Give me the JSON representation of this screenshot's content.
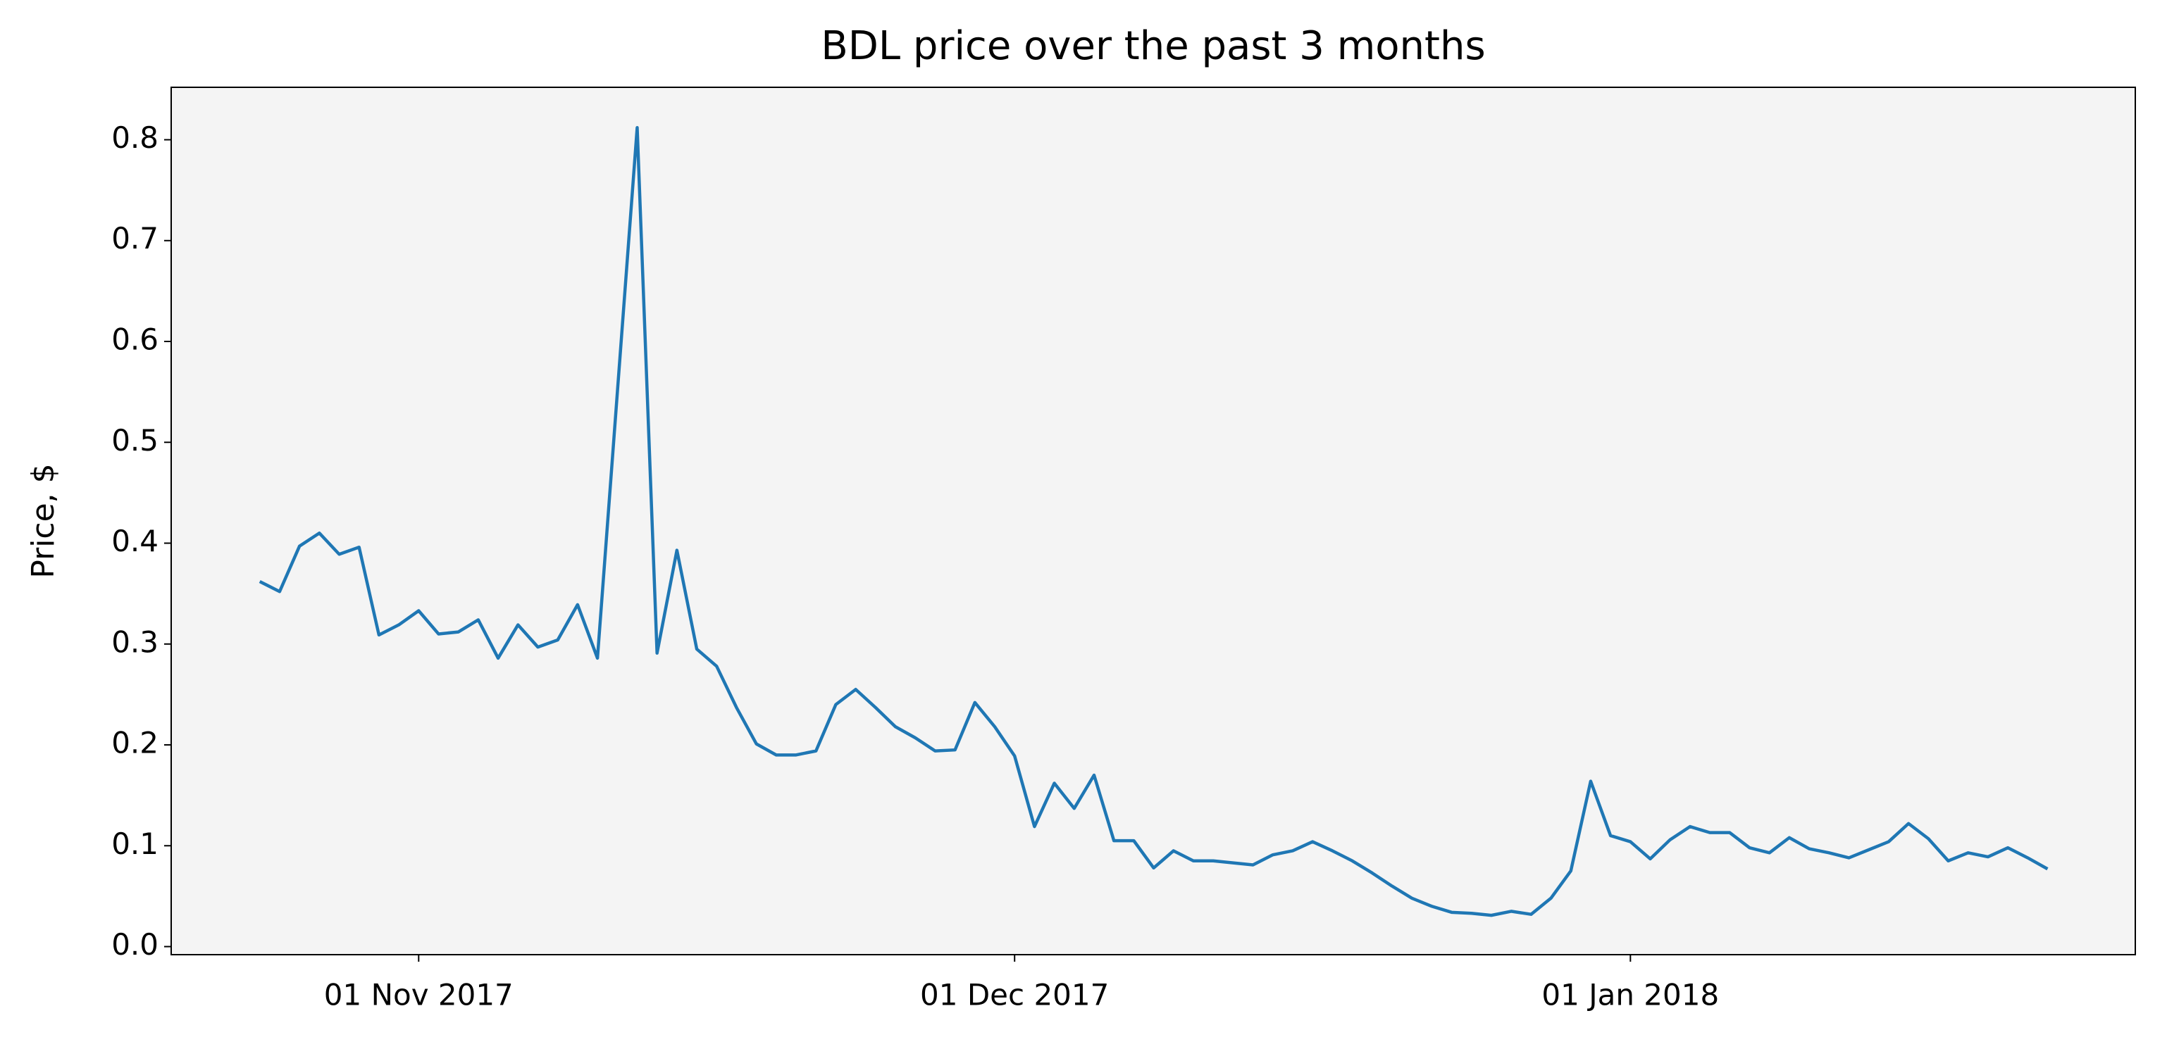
{
  "chart_data": {
    "type": "line",
    "title": "BDL price over the past 3 months",
    "y_label": "Price, $",
    "x": [
      "2017-10-24",
      "2017-10-25",
      "2017-10-26",
      "2017-10-27",
      "2017-10-28",
      "2017-10-29",
      "2017-10-30",
      "2017-10-31",
      "2017-11-01",
      "2017-11-02",
      "2017-11-03",
      "2017-11-04",
      "2017-11-05",
      "2017-11-06",
      "2017-11-07",
      "2017-11-08",
      "2017-11-09",
      "2017-11-10",
      "2017-11-11",
      "2017-11-12",
      "2017-11-13",
      "2017-11-14",
      "2017-11-15",
      "2017-11-16",
      "2017-11-17",
      "2017-11-18",
      "2017-11-19",
      "2017-11-20",
      "2017-11-21",
      "2017-11-22",
      "2017-11-23",
      "2017-11-24",
      "2017-11-25",
      "2017-11-26",
      "2017-11-27",
      "2017-11-28",
      "2017-11-29",
      "2017-11-30",
      "2017-12-01",
      "2017-12-02",
      "2017-12-03",
      "2017-12-04",
      "2017-12-05",
      "2017-12-06",
      "2017-12-07",
      "2017-12-08",
      "2017-12-09",
      "2017-12-10",
      "2017-12-11",
      "2017-12-12",
      "2017-12-13",
      "2017-12-14",
      "2017-12-15",
      "2017-12-16",
      "2017-12-17",
      "2017-12-18",
      "2017-12-19",
      "2017-12-20",
      "2017-12-21",
      "2017-12-22",
      "2017-12-23",
      "2017-12-24",
      "2017-12-25",
      "2017-12-26",
      "2017-12-27",
      "2017-12-28",
      "2017-12-29",
      "2017-12-30",
      "2017-12-31",
      "2018-01-01",
      "2018-01-02",
      "2018-01-03",
      "2018-01-04",
      "2018-01-05",
      "2018-01-06",
      "2018-01-07",
      "2018-01-08",
      "2018-01-09",
      "2018-01-10",
      "2018-01-11",
      "2018-01-12",
      "2018-01-13",
      "2018-01-14",
      "2018-01-15",
      "2018-01-16",
      "2018-01-17",
      "2018-01-18",
      "2018-01-19",
      "2018-01-20",
      "2018-01-21",
      "2018-01-22"
    ],
    "series": [
      {
        "name": "BDL",
        "color": "#1f77b4",
        "values": [
          0.362,
          0.352,
          0.397,
          0.41,
          0.389,
          0.396,
          0.309,
          0.319,
          0.333,
          0.31,
          0.312,
          0.324,
          0.286,
          0.319,
          0.297,
          0.304,
          0.339,
          0.286,
          0.549,
          0.812,
          0.291,
          0.393,
          0.295,
          0.278,
          0.237,
          0.201,
          0.19,
          0.19,
          0.194,
          0.24,
          0.255,
          0.237,
          0.218,
          0.207,
          0.194,
          0.195,
          0.242,
          0.218,
          0.189,
          0.119,
          0.162,
          0.137,
          0.17,
          0.105,
          0.105,
          0.078,
          0.095,
          0.085,
          0.085,
          0.083,
          0.081,
          0.091,
          0.095,
          0.104,
          0.095,
          0.085,
          0.073,
          0.06,
          0.048,
          0.04,
          0.034,
          0.033,
          0.031,
          0.035,
          0.032,
          0.048,
          0.075,
          0.164,
          0.11,
          0.104,
          0.087,
          0.106,
          0.119,
          0.113,
          0.113,
          0.098,
          0.093,
          0.108,
          0.097,
          0.093,
          0.088,
          0.096,
          0.104,
          0.122,
          0.107,
          0.085,
          0.093,
          0.089,
          0.098,
          0.088,
          0.077
        ]
      }
    ],
    "xlim": [
      "2017-10-19T13:00:00Z",
      "2018-01-26T10:00:00Z"
    ],
    "xticks": [
      {
        "value": "2017-11-01",
        "label": "01 Nov 2017"
      },
      {
        "value": "2017-12-01",
        "label": "01 Dec 2017"
      },
      {
        "value": "2018-01-01",
        "label": "01 Jan 2018"
      }
    ],
    "ylim": [
      -0.008,
      0.852
    ],
    "yticks": [
      {
        "value": 0,
        "label": "0.0"
      },
      0.1,
      0.2,
      0.3,
      0.4,
      0.5,
      0.6,
      0.7,
      0.8
    ],
    "plot_background": "#f4f4f4",
    "grid": false
  }
}
